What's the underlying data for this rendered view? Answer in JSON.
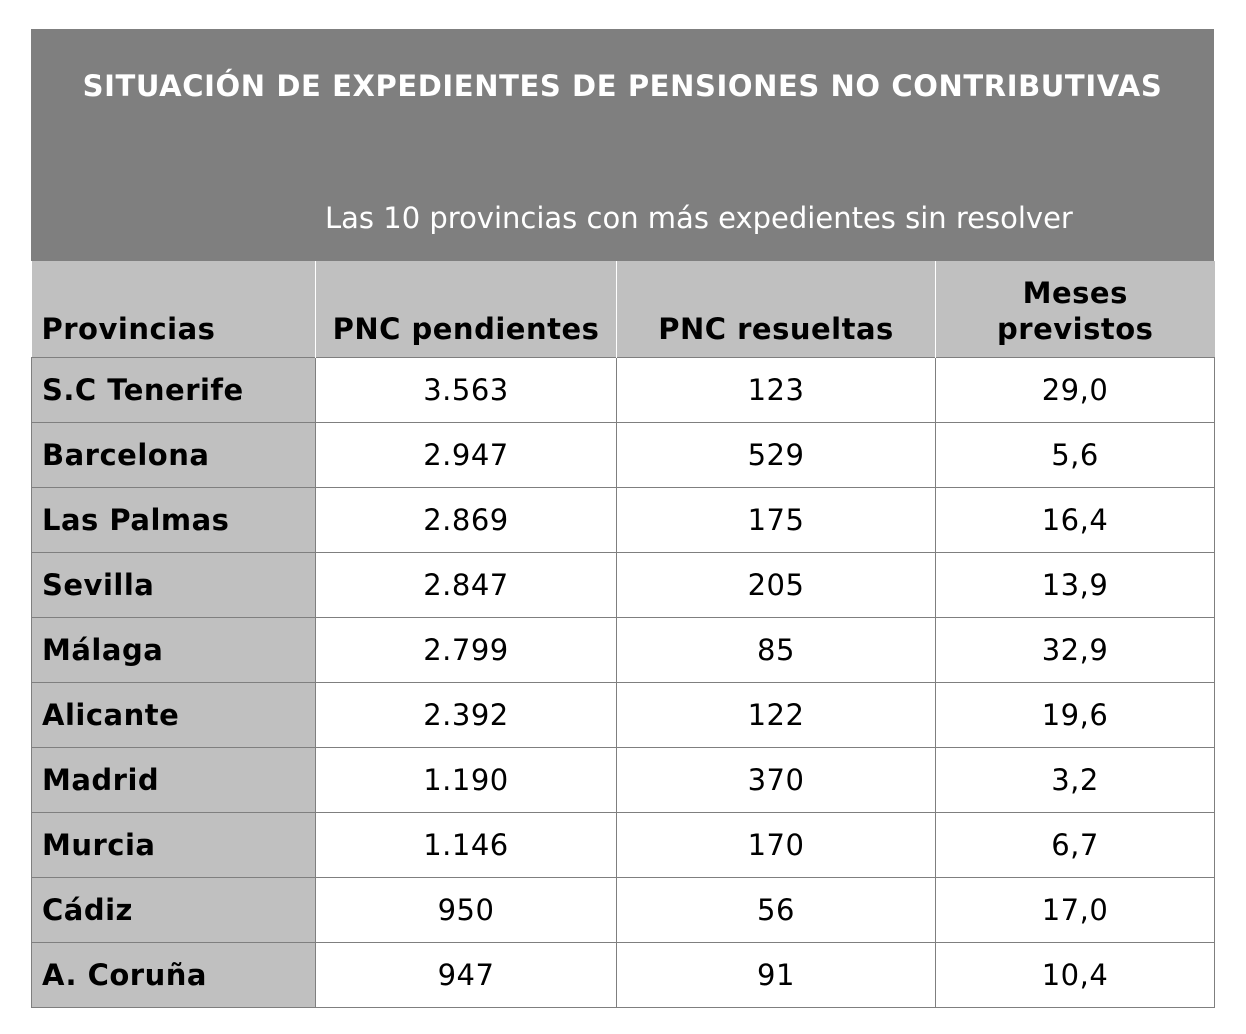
{
  "chart_data": {
    "type": "table",
    "title": "SITUACIÓN DE EXPEDIENTES DE PENSIONES NO CONTRIBUTIVAS",
    "subtitle": "Las 10 provincias con más expedientes sin resolver",
    "columns": [
      "Provincias",
      "PNC pendientes",
      "PNC resueltas",
      "Meses previstos"
    ],
    "rows": [
      [
        "S.C Tenerife",
        "3.563",
        "123",
        "29,0"
      ],
      [
        "Barcelona",
        "2.947",
        "529",
        "5,6"
      ],
      [
        "Las Palmas",
        "2.869",
        "175",
        "16,4"
      ],
      [
        "Sevilla",
        "2.847",
        "205",
        "13,9"
      ],
      [
        "Málaga",
        "2.799",
        "85",
        "32,9"
      ],
      [
        "Alicante",
        "2.392",
        "122",
        "19,6"
      ],
      [
        "Madrid",
        "1.190",
        "370",
        "3,2"
      ],
      [
        "Murcia",
        "1.146",
        "170",
        "6,7"
      ],
      [
        "Cádiz",
        "950",
        "56",
        "17,0"
      ],
      [
        "A. Coruña",
        "947",
        "91",
        "10,4"
      ]
    ]
  },
  "colors": {
    "title_background": "#7f7f7f",
    "header_background": "#c0c0c0",
    "title_text": "#ffffff",
    "border": "#7f7f7f"
  }
}
